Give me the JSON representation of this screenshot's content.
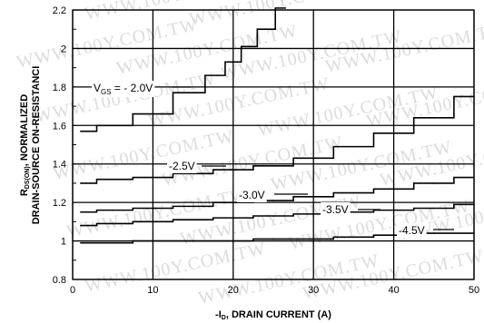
{
  "watermark": "WWW.100Y.COM.TW",
  "chart_data": {
    "type": "line",
    "xlabel": "-I_D, DRAIN CURRENT (A)",
    "xlabel_parts": {
      "pre": "-I",
      "sub": "D",
      "post": ", DRAIN CURRENT (A)"
    },
    "ylabel_line1": {
      "pre": "R",
      "sub": "DS(ON)",
      "post": ", NORMALIZED"
    },
    "ylabel_line2": "DRAIN-SOURCE ON-RESISTANCI",
    "xlim": [
      0,
      50
    ],
    "ylim": [
      0.8,
      2.2
    ],
    "x_ticks": [
      0,
      10,
      20,
      30,
      40,
      50
    ],
    "y_ticks": [
      0.8,
      1,
      1.2,
      1.4,
      1.6,
      1.8,
      2,
      2.2
    ],
    "grid": true,
    "series": [
      {
        "label_parts": {
          "pre": "V",
          "sub": "GS",
          "post": " = - 2.0V"
        },
        "x": [
          1,
          5,
          10,
          15,
          18,
          20,
          22,
          24,
          26.5
        ],
        "y": [
          1.57,
          1.6,
          1.66,
          1.77,
          1.86,
          1.93,
          2.01,
          2.1,
          2.21
        ]
      },
      {
        "label": "-2.5V",
        "x": [
          1,
          5,
          10,
          15,
          20,
          25,
          30,
          35,
          40,
          45,
          50
        ],
        "y": [
          1.3,
          1.32,
          1.33,
          1.35,
          1.37,
          1.39,
          1.43,
          1.49,
          1.56,
          1.64,
          1.75
        ]
      },
      {
        "label": "-3.0V",
        "x": [
          1,
          5,
          10,
          15,
          20,
          25,
          30,
          35,
          40,
          45,
          50
        ],
        "y": [
          1.15,
          1.16,
          1.17,
          1.18,
          1.2,
          1.21,
          1.23,
          1.25,
          1.27,
          1.3,
          1.33
        ]
      },
      {
        "label": "-3.5V",
        "x": [
          1,
          5,
          10,
          15,
          20,
          25,
          30,
          35,
          40,
          45,
          50
        ],
        "y": [
          1.08,
          1.09,
          1.1,
          1.11,
          1.12,
          1.13,
          1.14,
          1.15,
          1.16,
          1.17,
          1.19
        ]
      },
      {
        "label": "-4.5V",
        "x": [
          1,
          5,
          10,
          15,
          20,
          25,
          30,
          35,
          40,
          45,
          50
        ],
        "y": [
          0.99,
          0.99,
          1.0,
          1.0,
          1.0,
          1.01,
          1.01,
          1.02,
          1.03,
          1.04,
          1.04
        ]
      }
    ]
  }
}
